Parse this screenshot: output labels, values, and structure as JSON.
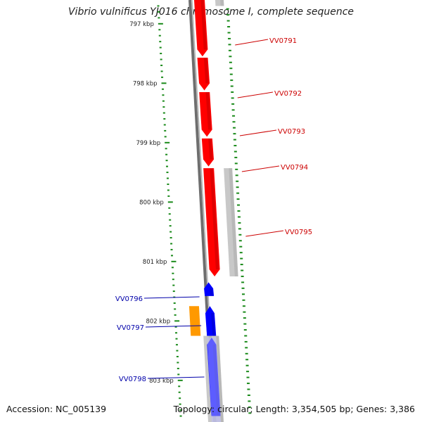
{
  "title": "Vibrio vulnificus YJ016 chromosome I, complete sequence",
  "footer": {
    "accession": "Accession: NC_005139",
    "summary": "Topology: circular; Length: 3,354,505 bp; Genes: 3,386"
  },
  "colors": {
    "strand_forward": "#ff0000",
    "strand_reverse": "#0000ff",
    "other_feature": "#ff9900",
    "gene_shadow": "#c8c8c8",
    "scale_tick": "#1a8a1a",
    "backbone": "#808080",
    "forward_label": "#cc0000",
    "reverse_label": "#0000aa"
  },
  "scale_labels": [
    {
      "kbp": 797,
      "text": "797 kbp"
    },
    {
      "kbp": 798,
      "text": "798 kbp"
    },
    {
      "kbp": 799,
      "text": "799 kbp"
    },
    {
      "kbp": 800,
      "text": "800 kbp"
    },
    {
      "kbp": 801,
      "text": "801 kbp"
    },
    {
      "kbp": 802,
      "text": "802 kbp"
    },
    {
      "kbp": 803,
      "text": "803 kbp"
    }
  ],
  "genes": [
    {
      "id": "VV0791",
      "strand": "forward",
      "start": 796.6,
      "end": 797.55
    },
    {
      "id": "VV0792",
      "strand": "forward",
      "start": 797.57,
      "end": 798.12
    },
    {
      "id": "VV0793",
      "strand": "forward",
      "start": 798.15,
      "end": 798.9
    },
    {
      "id": "VV0794",
      "strand": "forward",
      "start": 798.93,
      "end": 799.4
    },
    {
      "id": "VV0795",
      "strand": "forward",
      "start": 799.43,
      "end": 801.25
    },
    {
      "id": "VV0796",
      "strand": "reverse",
      "start": 801.35,
      "end": 801.58
    },
    {
      "id": "VV0797",
      "strand": "reverse",
      "start": 801.75,
      "end": 802.25
    },
    {
      "id": "VV0798",
      "strand": "reverse",
      "start": 802.28,
      "end": 803.6
    }
  ],
  "other_features": [
    {
      "kind": "orange",
      "start": 801.75,
      "end": 802.25
    }
  ]
}
